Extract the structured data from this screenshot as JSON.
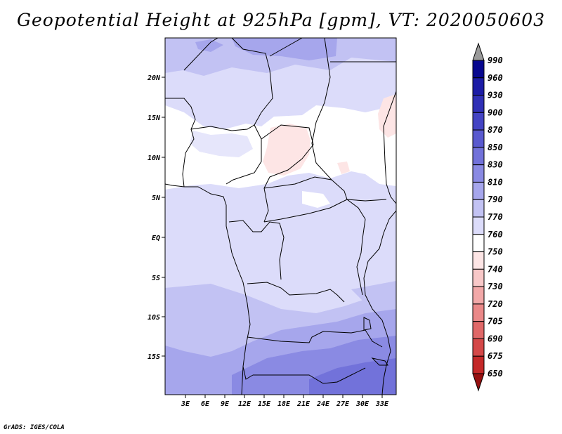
{
  "title": "Geopotential Height at 925hPa [gpm], VT: 2020050603",
  "credit": "GrADS: IGES/COLA",
  "map": {
    "lat_labels": [
      "20N",
      "15N",
      "10N",
      "5N",
      "EQ",
      "5S",
      "10S",
      "15S"
    ],
    "lon_labels": [
      "3E",
      "6E",
      "9E",
      "12E",
      "15E",
      "18E",
      "21E",
      "24E",
      "27E",
      "30E",
      "33E"
    ]
  },
  "colorbar": {
    "levels": [
      "990",
      "960",
      "930",
      "900",
      "870",
      "850",
      "830",
      "810",
      "790",
      "770",
      "760",
      "750",
      "740",
      "730",
      "720",
      "705",
      "690",
      "675",
      "650"
    ],
    "colors": [
      "#08088f",
      "#1c1ca6",
      "#3030b6",
      "#4444c4",
      "#5a5acf",
      "#7272da",
      "#8a8ae3",
      "#a6a6ec",
      "#c2c2f3",
      "#dcdcfa",
      "#ffffff",
      "#fde5e5",
      "#f8c8c8",
      "#f2a8a8",
      "#ea8888",
      "#e06868",
      "#d44848",
      "#c42828",
      "#b01414",
      "#961010"
    ],
    "over_color": "#9a9a9a"
  }
}
